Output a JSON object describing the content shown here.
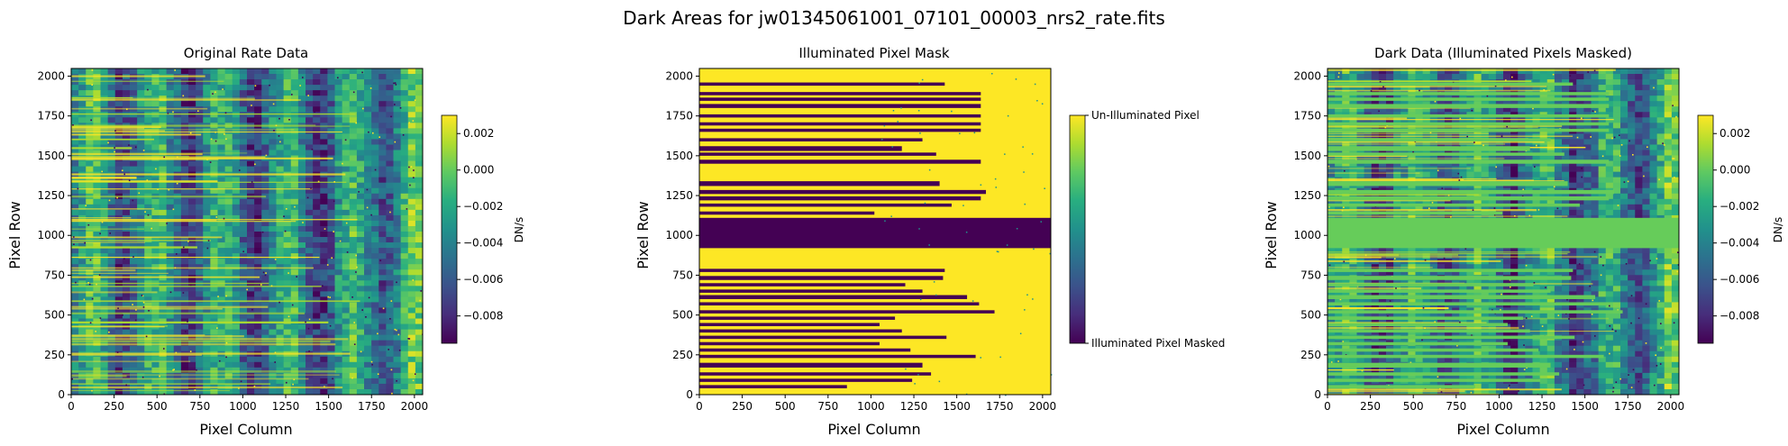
{
  "figure": {
    "suptitle": "Dark Areas for jw01345061001_07101_00003_nrs2_rate.fits"
  },
  "chart_data": [
    {
      "type": "heatmap",
      "title": "Original Rate Data",
      "xlabel": "Pixel Column",
      "ylabel": "Pixel Row",
      "xlim": [
        0,
        2048
      ],
      "ylim": [
        0,
        2048
      ],
      "xticks": [
        "0",
        "250",
        "500",
        "750",
        "1000",
        "1250",
        "1500",
        "1750",
        "2000"
      ],
      "yticks": [
        "0",
        "250",
        "500",
        "750",
        "1000",
        "1250",
        "1500",
        "1750",
        "2000"
      ],
      "colormap": "viridis",
      "colorbar": {
        "label": "DN/s",
        "range": [
          -0.0095,
          0.003
        ],
        "ticks": [
          0.002,
          0.0,
          -0.002,
          -0.004,
          -0.006,
          -0.008
        ],
        "tick_labels": [
          "0.002",
          "0.000",
          "−0.002",
          "−0.004",
          "−0.006",
          "−0.008"
        ]
      }
    },
    {
      "type": "heatmap",
      "title": "Illuminated Pixel Mask",
      "xlabel": "Pixel Column",
      "ylabel": "Pixel Row",
      "xlim": [
        0,
        2048
      ],
      "ylim": [
        0,
        2048
      ],
      "xticks": [
        "0",
        "250",
        "500",
        "750",
        "1000",
        "1250",
        "1500",
        "1750",
        "2000"
      ],
      "yticks": [
        "0",
        "250",
        "500",
        "750",
        "1000",
        "1250",
        "1500",
        "1750",
        "2000"
      ],
      "colormap": "viridis",
      "colorbar": {
        "label": "",
        "range": [
          0,
          1
        ],
        "ticks": [
          1,
          0
        ],
        "tick_labels": [
          "Un-Illuminated Pixel",
          "Illuminated Pixel Masked"
        ]
      },
      "masked_band_rows": [
        920,
        1110
      ],
      "masked_streaks": [
        [
          1940,
          1960,
          1430
        ],
        [
          1880,
          1900,
          1640
        ],
        [
          1845,
          1865,
          1640
        ],
        [
          1800,
          1825,
          1640
        ],
        [
          1740,
          1760,
          1640
        ],
        [
          1690,
          1710,
          1640
        ],
        [
          1650,
          1670,
          1640
        ],
        [
          1590,
          1610,
          1300
        ],
        [
          1530,
          1560,
          1180
        ],
        [
          1500,
          1520,
          1380
        ],
        [
          1450,
          1475,
          1640
        ],
        [
          1310,
          1340,
          1400
        ],
        [
          1260,
          1285,
          1670
        ],
        [
          1220,
          1245,
          1640
        ],
        [
          1180,
          1200,
          1470
        ],
        [
          1130,
          1150,
          1020
        ],
        [
          770,
          790,
          1430
        ],
        [
          720,
          745,
          1420
        ],
        [
          680,
          700,
          1200
        ],
        [
          640,
          660,
          1300
        ],
        [
          600,
          625,
          1560
        ],
        [
          560,
          580,
          1630
        ],
        [
          510,
          530,
          1720
        ],
        [
          470,
          490,
          1140
        ],
        [
          430,
          450,
          1050
        ],
        [
          390,
          410,
          1180
        ],
        [
          350,
          370,
          1440
        ],
        [
          310,
          330,
          1050
        ],
        [
          270,
          290,
          1230
        ],
        [
          230,
          250,
          1610
        ],
        [
          170,
          200,
          1300
        ],
        [
          120,
          140,
          1350
        ],
        [
          80,
          100,
          1240
        ],
        [
          40,
          60,
          860
        ]
      ]
    },
    {
      "type": "heatmap",
      "title": "Dark Data (Illuminated Pixels Masked)",
      "xlabel": "Pixel Column",
      "ylabel": "Pixel Row",
      "xlim": [
        0,
        2048
      ],
      "ylim": [
        0,
        2048
      ],
      "xticks": [
        "0",
        "250",
        "500",
        "750",
        "1000",
        "1250",
        "1500",
        "1750",
        "2000"
      ],
      "yticks": [
        "0",
        "250",
        "500",
        "750",
        "1000",
        "1250",
        "1500",
        "1750",
        "2000"
      ],
      "colormap": "viridis",
      "mask_color": "#66cc5a",
      "colorbar": {
        "label": "DN/s",
        "range": [
          -0.0095,
          0.003
        ],
        "ticks": [
          0.002,
          0.0,
          -0.002,
          -0.004,
          -0.006,
          -0.008
        ],
        "tick_labels": [
          "0.002",
          "0.000",
          "−0.002",
          "−0.004",
          "−0.006",
          "−0.008"
        ]
      }
    }
  ]
}
